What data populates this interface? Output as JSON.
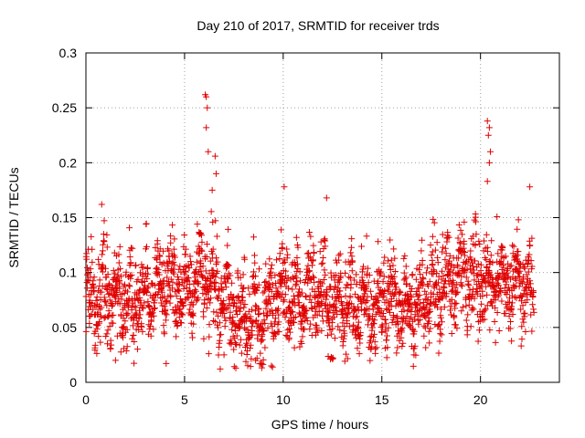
{
  "chart_data": {
    "type": "scatter",
    "title": "Day 210 of 2017, SRMTID for receiver trds",
    "xlabel": "GPS time / hours",
    "ylabel": "SRMTID / TECUs",
    "xlim": [
      0,
      24
    ],
    "ylim": [
      0,
      0.3
    ],
    "xticks": [
      0,
      5,
      10,
      15,
      20
    ],
    "xtick_labels": [
      "0",
      "5",
      "10",
      "15",
      "20"
    ],
    "yticks": [
      0,
      0.05,
      0.1,
      0.15,
      0.2,
      0.25,
      0.3
    ],
    "ytick_labels": [
      "0",
      "0.05",
      "0.1",
      "0.15",
      "0.2",
      "0.25",
      "0.3"
    ],
    "grid": true,
    "marker": "+",
    "marker_color": "#e00000",
    "series": [
      {
        "name": "SRMTID",
        "sample_count": 2300,
        "x_range": [
          0,
          22.7
        ],
        "typical_range": [
          0.03,
          0.15
        ],
        "baseline_profile": [
          [
            0,
            0.072
          ],
          [
            1,
            0.085
          ],
          [
            2,
            0.072
          ],
          [
            3,
            0.08
          ],
          [
            4,
            0.088
          ],
          [
            5,
            0.085
          ],
          [
            6,
            0.1
          ],
          [
            7,
            0.07
          ],
          [
            8,
            0.062
          ],
          [
            9,
            0.058
          ],
          [
            10,
            0.082
          ],
          [
            11,
            0.078
          ],
          [
            12,
            0.075
          ],
          [
            13,
            0.072
          ],
          [
            14,
            0.07
          ],
          [
            15,
            0.072
          ],
          [
            16,
            0.074
          ],
          [
            17,
            0.07
          ],
          [
            18,
            0.09
          ],
          [
            19,
            0.095
          ],
          [
            20,
            0.093
          ],
          [
            21,
            0.09
          ],
          [
            22,
            0.088
          ],
          [
            22.7,
            0.085
          ]
        ],
        "notable_points": [
          [
            6.05,
            0.262
          ],
          [
            6.1,
            0.26
          ],
          [
            6.15,
            0.25
          ],
          [
            6.1,
            0.232
          ],
          [
            6.2,
            0.21
          ],
          [
            6.55,
            0.206
          ],
          [
            6.6,
            0.19
          ],
          [
            6.4,
            0.175
          ],
          [
            20.35,
            0.238
          ],
          [
            20.45,
            0.232
          ],
          [
            20.4,
            0.225
          ],
          [
            20.5,
            0.21
          ],
          [
            20.45,
            0.2
          ],
          [
            20.35,
            0.183
          ],
          [
            10.05,
            0.178
          ],
          [
            12.2,
            0.168
          ],
          [
            22.5,
            0.178
          ],
          [
            0.8,
            0.162
          ],
          [
            9.4,
            0.015
          ],
          [
            8.6,
            0.02
          ],
          [
            1.5,
            0.02
          ],
          [
            7.0,
            0.025
          ]
        ]
      }
    ]
  }
}
